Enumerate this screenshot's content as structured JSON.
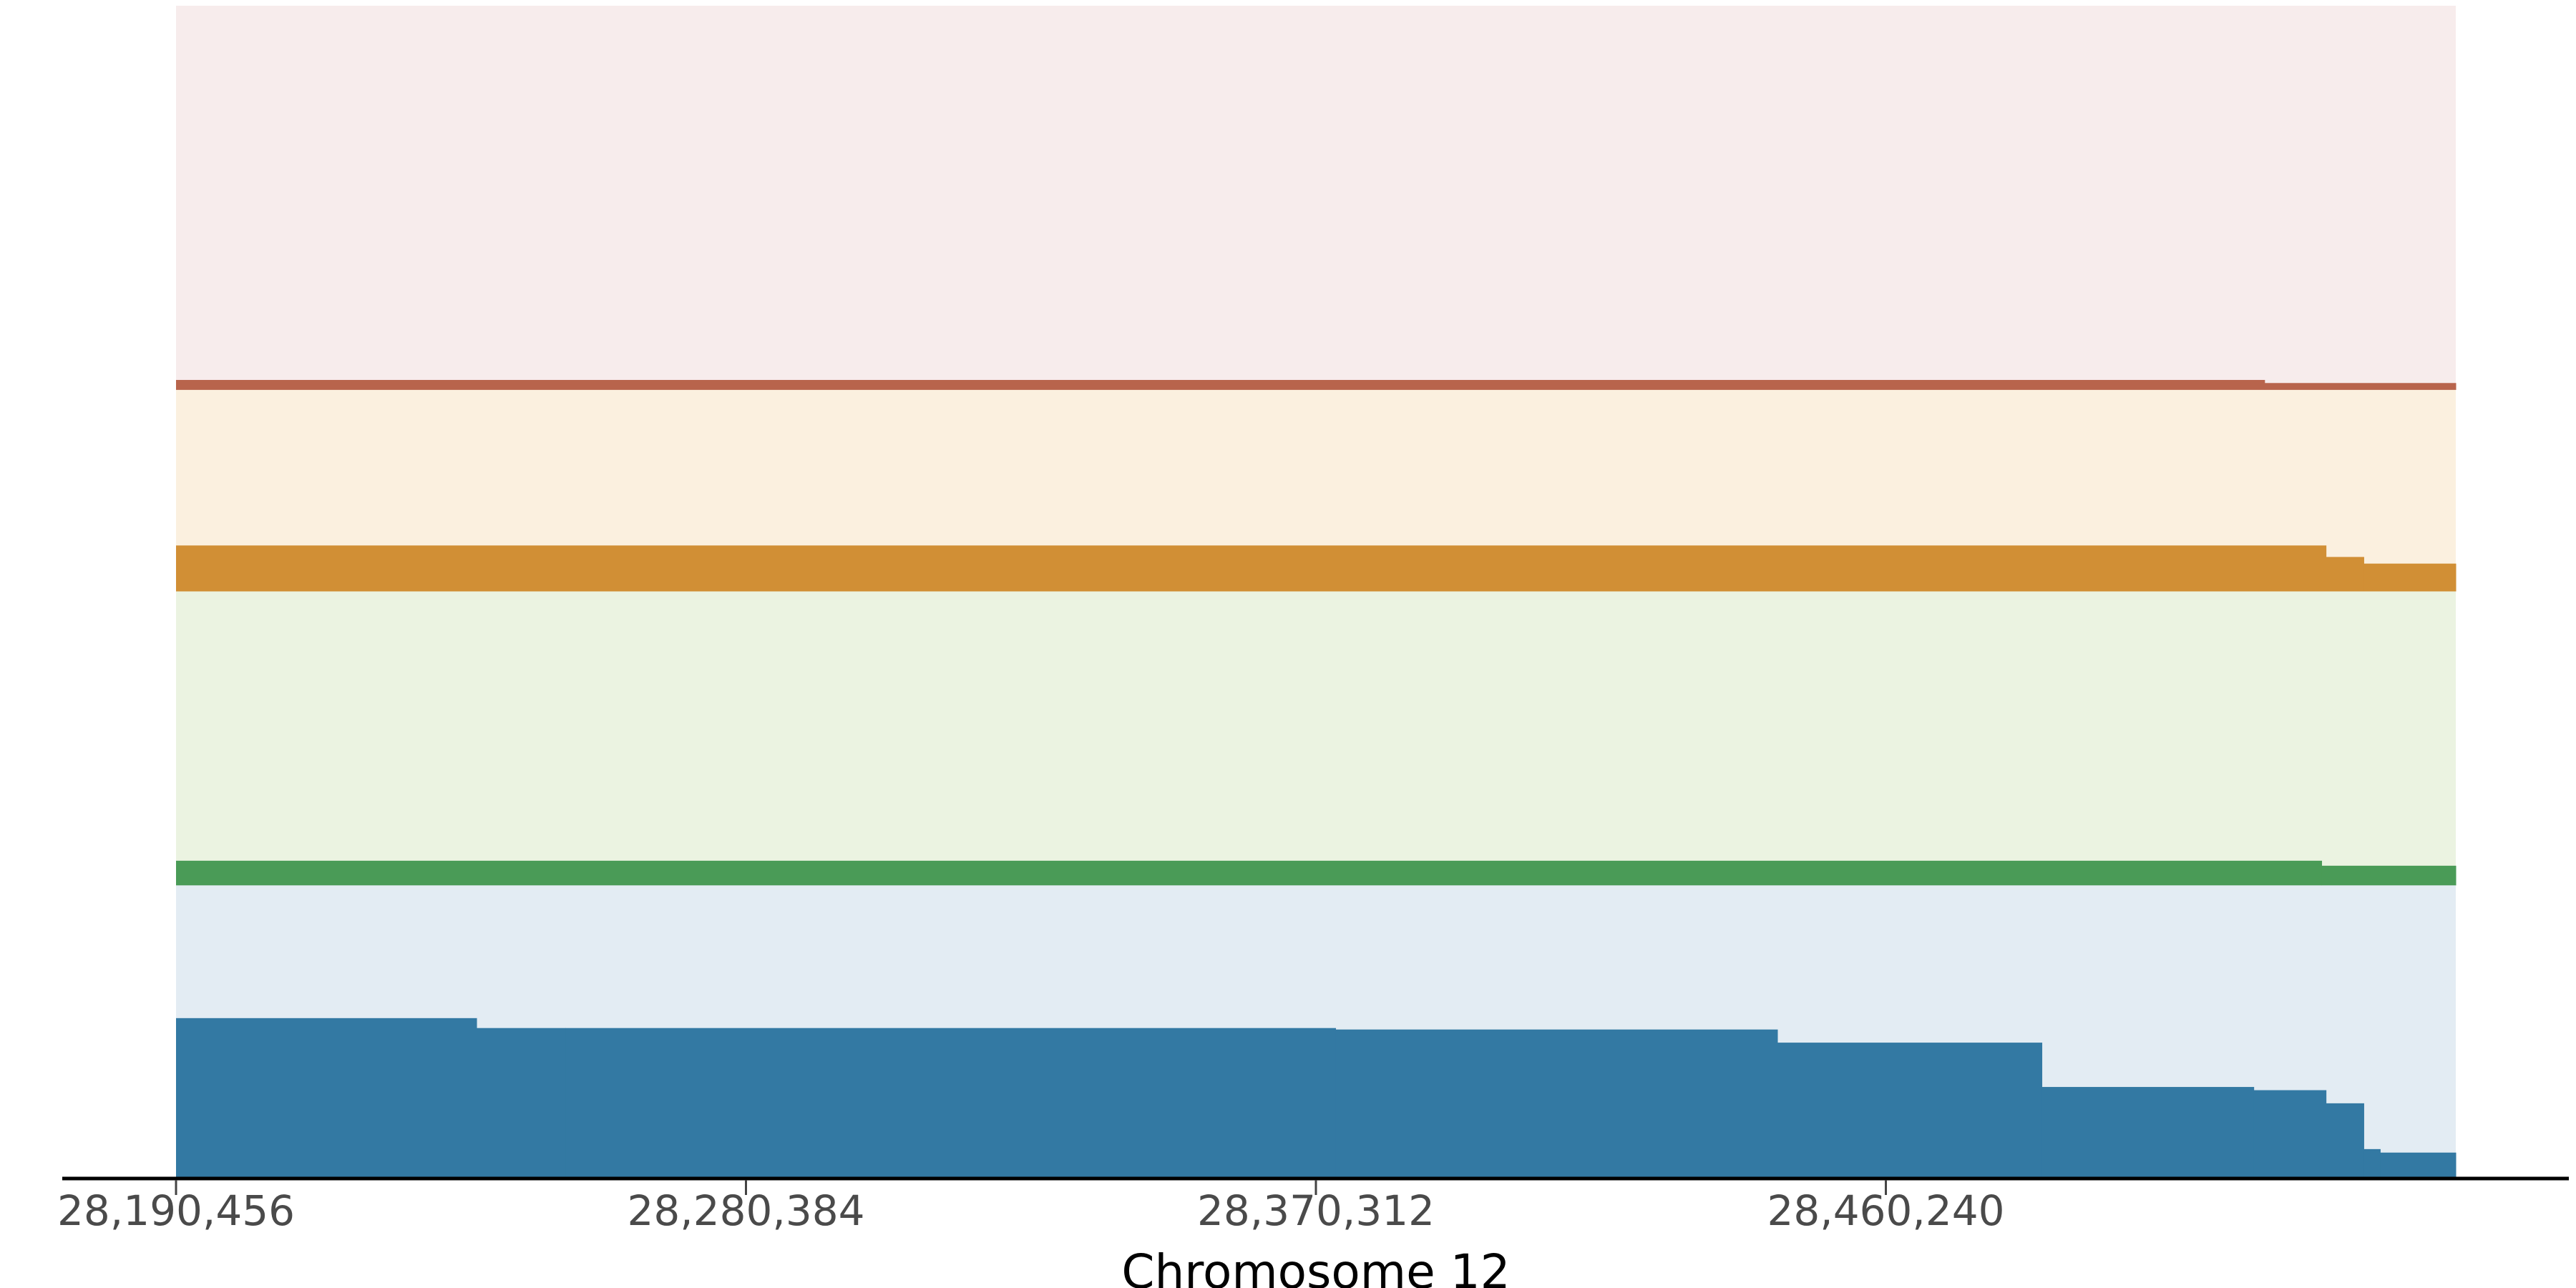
{
  "chart_data": {
    "type": "area",
    "title": "",
    "xlabel": "Chromosome 12",
    "ylabel": "",
    "xlim": [
      28190456,
      28550165
    ],
    "xticks": [
      28190456,
      28280384,
      28370312,
      28460240
    ],
    "xtick_labels": [
      "28,190,456",
      "28,280,384",
      "28,370,312",
      "28,460,240"
    ],
    "grid": false,
    "bands": [
      {
        "share": 0.328,
        "background_color": "#f7ecec",
        "fill_color": "#b8644c",
        "segments": [
          {
            "start": 28190456,
            "end": 28520000,
            "fraction": 0.026
          },
          {
            "start": 28520000,
            "end": 28550165,
            "fraction": 0.018
          }
        ]
      },
      {
        "share": 0.172,
        "background_color": "#fbf0df",
        "fill_color": "#d18f35",
        "segments": [
          {
            "start": 28190456,
            "end": 28529692,
            "fraction": 0.228
          },
          {
            "start": 28529692,
            "end": 28535652,
            "fraction": 0.171
          },
          {
            "start": 28535652,
            "end": 28550165,
            "fraction": 0.138
          }
        ]
      },
      {
        "share": 0.251,
        "background_color": "#ebf3e1",
        "fill_color": "#4a9b57",
        "segments": [
          {
            "start": 28190456,
            "end": 28529000,
            "fraction": 0.084
          },
          {
            "start": 28529000,
            "end": 28550165,
            "fraction": 0.067
          }
        ]
      },
      {
        "share": 0.249,
        "background_color": "#e3ecf3",
        "fill_color": "#3379a3",
        "segments": [
          {
            "start": 28190456,
            "end": 28237882,
            "fraction": 0.545
          },
          {
            "start": 28237882,
            "end": 28251876,
            "fraction": 0.511
          },
          {
            "start": 28251876,
            "end": 28373420,
            "fraction": 0.511
          },
          {
            "start": 28373420,
            "end": 28443133,
            "fraction": 0.506
          },
          {
            "start": 28443133,
            "end": 28484857,
            "fraction": 0.461
          },
          {
            "start": 28484857,
            "end": 28518289,
            "fraction": 0.309
          },
          {
            "start": 28518289,
            "end": 28529692,
            "fraction": 0.298
          },
          {
            "start": 28529692,
            "end": 28535652,
            "fraction": 0.253
          },
          {
            "start": 28535652,
            "end": 28538244,
            "fraction": 0.096
          },
          {
            "start": 28538244,
            "end": 28550165,
            "fraction": 0.084
          }
        ]
      }
    ]
  }
}
